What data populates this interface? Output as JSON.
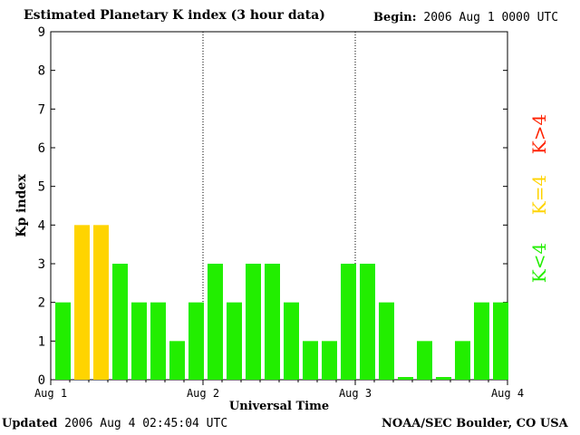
{
  "header": {
    "title": "Estimated Planetary K index (3 hour data)",
    "begin_label": "Begin:",
    "begin_value": "2006 Aug 1 0000 UTC"
  },
  "footer": {
    "updated_label": "Updated",
    "updated_value": "2006 Aug  4 02:45:04 UTC",
    "credit": "NOAA/SEC Boulder, CO USA"
  },
  "colors": {
    "low": "#22ee00",
    "storm_threshold": "#ffd400",
    "high": "#ff2200"
  },
  "legend": [
    {
      "label": "K>4",
      "color": "#ff2200"
    },
    {
      "label": "K=4",
      "color": "#ffd400"
    },
    {
      "label": "K<4",
      "color": "#22ee00"
    }
  ],
  "chart_data": {
    "type": "bar",
    "title": "Estimated Planetary K index (3 hour data)",
    "xlabel": "Universal Time",
    "ylabel": "Kp index",
    "ylim": [
      0,
      9
    ],
    "yticks": [
      0,
      1,
      2,
      3,
      4,
      5,
      6,
      7,
      8,
      9
    ],
    "xticks": [
      "Aug 1",
      "Aug 2",
      "Aug 3",
      "Aug 4"
    ],
    "grid": "vertical dotted lines at day boundaries",
    "bar_interval_hours": 3,
    "values": [
      2,
      4,
      4,
      3,
      2,
      2,
      1,
      2,
      3,
      2,
      3,
      3,
      2,
      1,
      1,
      3,
      3,
      2,
      0,
      1,
      0,
      1,
      2,
      2
    ]
  }
}
